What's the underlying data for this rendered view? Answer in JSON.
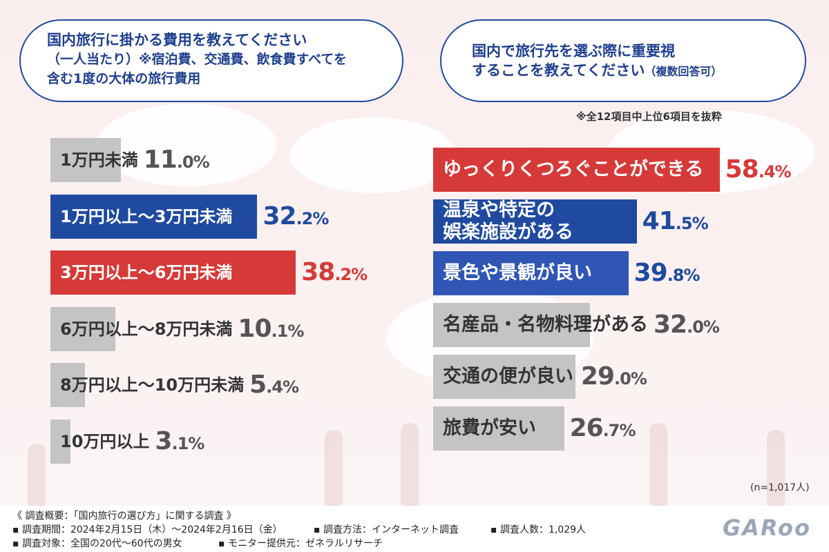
{
  "left_question": {
    "line1": "国内旅行に掛かる費用を教えてください",
    "line2": "（一人当たり）※宿泊費、交通費、飲食費すべてを",
    "line3": "含む1度の大体の旅行費用"
  },
  "right_question": {
    "line1": "国内で旅行先を選ぶ際に重要視",
    "line2": "することを教えてください",
    "line2_small": "（複数回答可）"
  },
  "right_note": "※全12項目中上位6項目を抜粋",
  "sample_size": "(n=1,017人)",
  "chart_data": [
    {
      "type": "bar",
      "orientation": "horizontal",
      "unit": "%",
      "categories": [
        "1万円未満",
        "1万円以上〜3万円未満",
        "3万円以上〜6万円未満",
        "6万円以上〜8万円未満",
        "8万円以上〜10万円未満",
        "10万円以上"
      ],
      "values": [
        11.0,
        32.2,
        38.2,
        10.1,
        5.4,
        3.1
      ],
      "value_labels": [
        [
          "11",
          ".0%"
        ],
        [
          "32",
          ".2%"
        ],
        [
          "38",
          ".2%"
        ],
        [
          "10",
          ".1%"
        ],
        [
          "5",
          ".4%"
        ],
        [
          "3",
          ".1%"
        ]
      ],
      "styles": [
        "grey",
        "blue",
        "red",
        "grey",
        "grey",
        "grey"
      ]
    },
    {
      "type": "bar",
      "orientation": "horizontal",
      "unit": "%",
      "categories": [
        "ゆっくりくつろぐことができる",
        "温泉や特定の娯楽施設がある",
        "景色や景観が良い",
        "名産品・名物料理がある",
        "交通の便が良い",
        "旅費が安い"
      ],
      "category_lines": [
        [
          "ゆっくりくつろぐことができる"
        ],
        [
          "温泉や特定の",
          "娯楽施設がある"
        ],
        [
          "景色や景観が良い"
        ],
        [
          "名産品・名物料理がある"
        ],
        [
          "交通の便が良い"
        ],
        [
          "旅費が安い"
        ]
      ],
      "values": [
        58.4,
        41.5,
        39.8,
        32.0,
        29.0,
        26.7
      ],
      "value_labels": [
        [
          "58",
          ".4%"
        ],
        [
          "41",
          ".5%"
        ],
        [
          "39",
          ".8%"
        ],
        [
          "32",
          ".0%"
        ],
        [
          "29",
          ".0%"
        ],
        [
          "26",
          ".7%"
        ]
      ],
      "styles": [
        "red",
        "blue",
        "rblue",
        "grey",
        "grey",
        "grey"
      ]
    }
  ],
  "footer": {
    "line1": "《 調査概要：「国内旅行の選び方」に関する調査 》",
    "items_row2": [
      "▪ 調査期間：2024年2月15日（木）〜2024年2月16日（金）",
      "▪ 調査方法：インターネット調査",
      "▪ 調査人数：1,029人"
    ],
    "items_row3": [
      "▪ 調査対象：全国の20代〜60代の男女",
      "▪ モニター提供元：ゼネラルリサーチ"
    ],
    "logo": "GARoo"
  },
  "colors": {
    "red": "#d63a38",
    "blue": "#1f4aa0",
    "grey": "#c4c4c4"
  }
}
